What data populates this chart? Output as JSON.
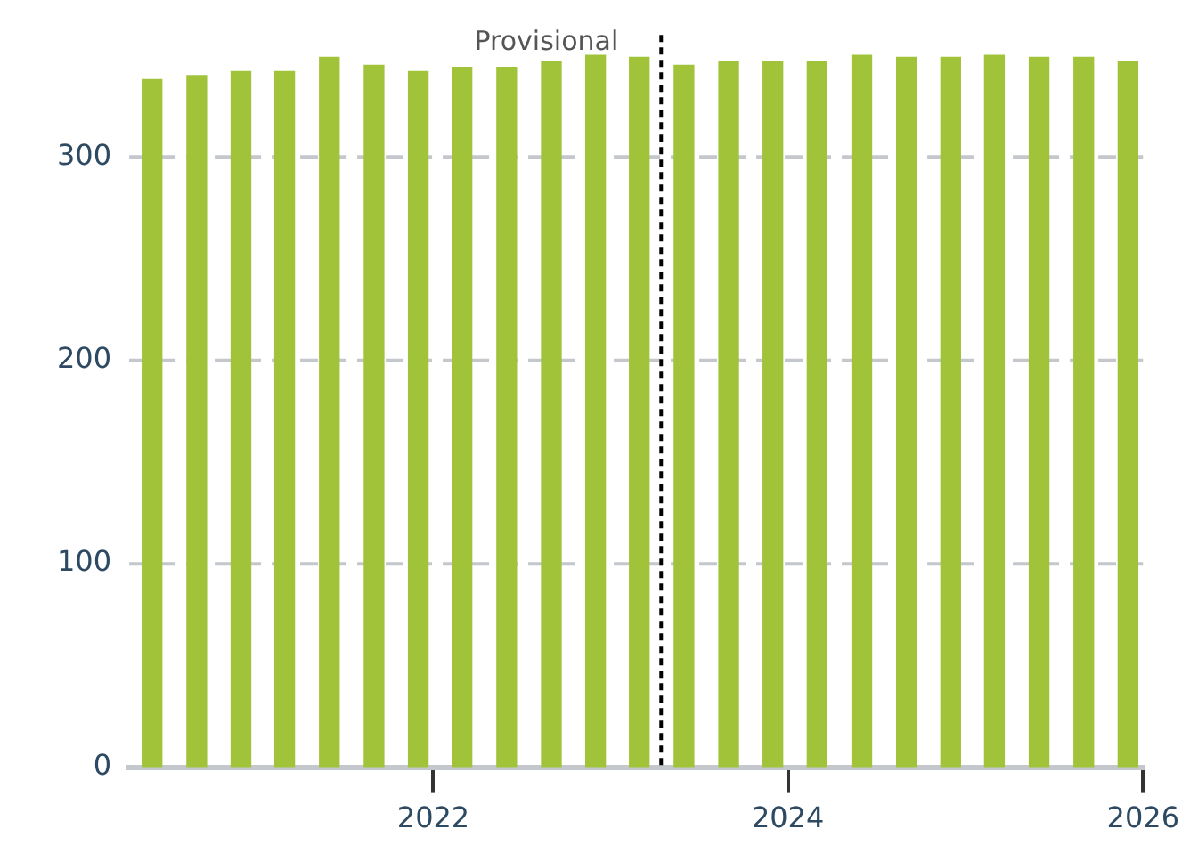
{
  "chart_data": {
    "type": "bar",
    "x": [
      "2020-06",
      "2020-09",
      "2020-12",
      "2021-03",
      "2021-06",
      "2021-09",
      "2021-12",
      "2022-03",
      "2022-06",
      "2022-09",
      "2022-12",
      "2023-03",
      "2023-06",
      "2023-09",
      "2023-12",
      "2024-03",
      "2024-06",
      "2024-09",
      "2024-12",
      "2025-03",
      "2025-06",
      "2025-09",
      "2025-12"
    ],
    "values": [
      338,
      340,
      342,
      342,
      349,
      345,
      342,
      344,
      344,
      347,
      350,
      349,
      345,
      347,
      347,
      347,
      350,
      349,
      349,
      350,
      349,
      349,
      347
    ],
    "color": "#a1c33a",
    "xlim": [
      "2020-04-15",
      "2026-01-01"
    ],
    "xticks": [
      "2022",
      "2024",
      "2026"
    ],
    "ylim": [
      0,
      360
    ],
    "yticks": [
      0,
      100,
      200,
      300
    ],
    "grid": "y",
    "legend": false,
    "ref_lines": [
      {
        "axis": "x",
        "value": "2023-04-15",
        "label": "Provisional",
        "color": "#000000",
        "line_style": "dashed"
      }
    ]
  }
}
